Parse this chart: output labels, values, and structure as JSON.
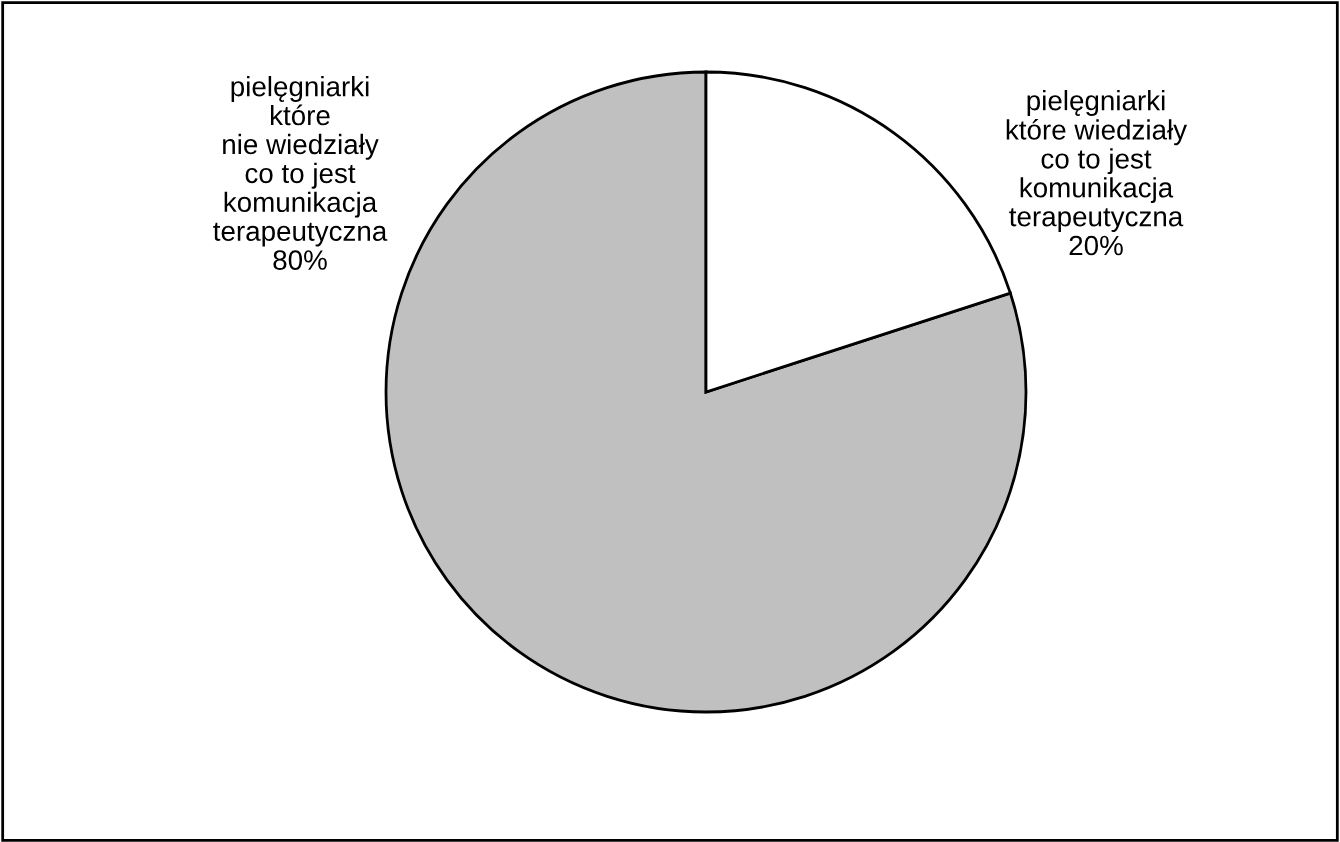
{
  "chart_data": {
    "type": "pie",
    "categories": [
      "pielęgniarki\nktóre\nnie wiedziały\nco to jest\nkomunikacja\nterapeutyczna",
      "pielęgniarki\nktóre wiedziały\nco to jest\nkomunikacja\nterapeutyczna"
    ],
    "values": [
      80,
      20
    ],
    "colors": [
      "#c0c0c0",
      "#ffffff"
    ],
    "value_labels": [
      "80%",
      "20%"
    ],
    "legend": false
  }
}
